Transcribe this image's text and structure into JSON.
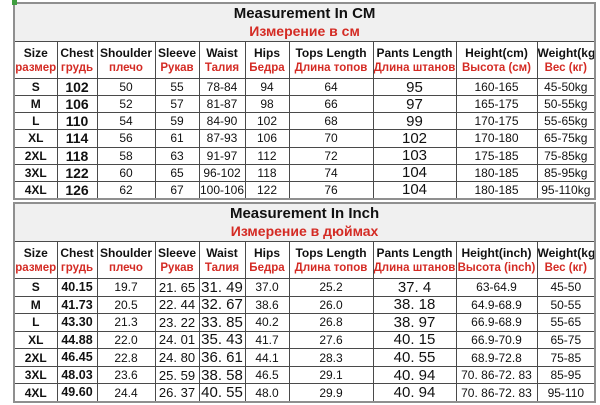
{
  "colors": {
    "accent_red": "#d42b24",
    "border_outer": "#8f8f8f",
    "border_inner": "#4a4a4a",
    "title_bg": "#f0f0f0",
    "artifact_green": "#3f9e3f"
  },
  "chart_data": [
    {
      "type": "table",
      "title_en": "Measurement In CM",
      "title_ru": "Измерение в см",
      "headers": [
        {
          "en": "Size",
          "ru": "размер"
        },
        {
          "en": "Chest",
          "ru": "грудь"
        },
        {
          "en": "Shoulder",
          "ru": "плечо"
        },
        {
          "en": "Sleeve",
          "ru": "Рукав"
        },
        {
          "en": "Waist",
          "ru": "Талия"
        },
        {
          "en": "Hips",
          "ru": "Бедра"
        },
        {
          "en": "Tops Length",
          "ru": "Длина топов"
        },
        {
          "en": "Pants Length",
          "ru": "Длина штанов"
        },
        {
          "en": "Height(cm)",
          "ru": "Высота (см)"
        },
        {
          "en": "Weight(kg)",
          "ru": "Вес (кг)"
        }
      ],
      "rows": [
        [
          "S",
          "102",
          "50",
          "55",
          "78-84",
          "94",
          "64",
          "95",
          "160-165",
          "45-50kg"
        ],
        [
          "M",
          "106",
          "52",
          "57",
          "81-87",
          "98",
          "66",
          "97",
          "165-175",
          "50-55kg"
        ],
        [
          "L",
          "110",
          "54",
          "59",
          "84-90",
          "102",
          "68",
          "99",
          "170-175",
          "55-65kg"
        ],
        [
          "XL",
          "114",
          "56",
          "61",
          "87-93",
          "106",
          "70",
          "102",
          "170-180",
          "65-75kg"
        ],
        [
          "2XL",
          "118",
          "58",
          "63",
          "91-97",
          "112",
          "72",
          "103",
          "175-185",
          "75-85kg"
        ],
        [
          "3XL",
          "122",
          "60",
          "65",
          "96-102",
          "118",
          "74",
          "104",
          "180-185",
          "85-95kg"
        ],
        [
          "4XL",
          "126",
          "62",
          "67",
          "100-106",
          "122",
          "76",
          "104",
          "180-185",
          "95-110kg"
        ]
      ]
    },
    {
      "type": "table",
      "title_en": "Measurement In Inch",
      "title_ru": "Измерение в дюймах",
      "headers": [
        {
          "en": "Size",
          "ru": "размер"
        },
        {
          "en": "Chest",
          "ru": "грудь"
        },
        {
          "en": "Shoulder",
          "ru": "плечо"
        },
        {
          "en": "Sleeve",
          "ru": "Рукав"
        },
        {
          "en": "Waist",
          "ru": "Талия"
        },
        {
          "en": "Hips",
          "ru": "Бедра"
        },
        {
          "en": "Tops Length",
          "ru": "Длина топов"
        },
        {
          "en": "Pants Length",
          "ru": "Длина штанов"
        },
        {
          "en": "Height(inch)",
          "ru": "Высота (inch)"
        },
        {
          "en": "Weight(kg)",
          "ru": "Вес (кг)"
        }
      ],
      "rows": [
        [
          "S",
          "40.15",
          "19.7",
          "21. 65",
          "31. 49",
          "37.0",
          "25.2",
          "37. 4",
          "63-64.9",
          "45-50"
        ],
        [
          "M",
          "41.73",
          "20.5",
          "22. 44",
          "32. 67",
          "38.6",
          "26.0",
          "38. 18",
          "64.9-68.9",
          "50-55"
        ],
        [
          "L",
          "43.30",
          "21.3",
          "23. 22",
          "33. 85",
          "40.2",
          "26.8",
          "38. 97",
          "66.9-68.9",
          "55-65"
        ],
        [
          "XL",
          "44.88",
          "22.0",
          "24. 01",
          "35. 43",
          "41.7",
          "27.6",
          "40. 15",
          "66.9-70.9",
          "65-75"
        ],
        [
          "2XL",
          "46.45",
          "22.8",
          "24. 80",
          "36. 61",
          "44.1",
          "28.3",
          "40. 55",
          "68.9-72.8",
          "75-85"
        ],
        [
          "3XL",
          "48.03",
          "23.6",
          "25. 59",
          "38. 58",
          "46.5",
          "29.1",
          "40. 94",
          "70. 86-72. 83",
          "85-95"
        ],
        [
          "4XL",
          "49.60",
          "24.4",
          "26. 37",
          "40. 55",
          "48.0",
          "29.9",
          "40. 94",
          "70. 86-72. 83",
          "95-110"
        ]
      ]
    }
  ]
}
